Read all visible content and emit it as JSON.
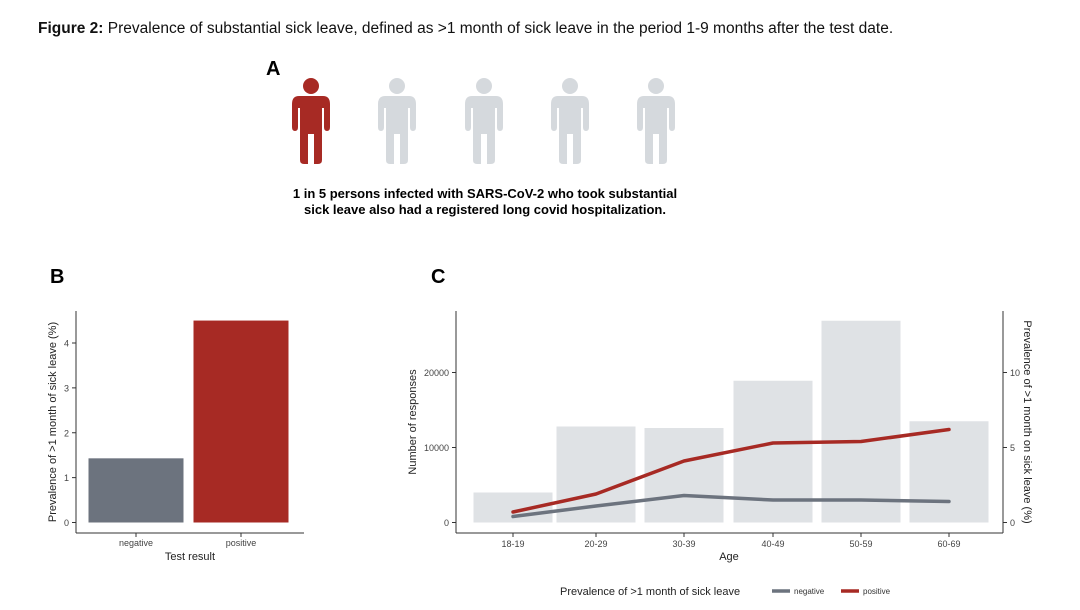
{
  "caption": {
    "label": "Figure 2:",
    "text": "Prevalence of substantial sick leave, defined as >1 month of sick leave in the period 1-9 months after the test date."
  },
  "panel_a": {
    "letter": "A",
    "icons": [
      "person-highlighted",
      "person",
      "person",
      "person",
      "person"
    ],
    "statement": "1 in 5 persons infected with SARS-CoV-2 who took substantial sick leave also had a registered long covid hospitalization."
  },
  "panel_b": {
    "letter": "B"
  },
  "panel_c": {
    "letter": "C"
  },
  "colors": {
    "positive": "#a72a24",
    "negative": "#6c737e",
    "responses": "#dfe2e5",
    "person_inactive": "#d5d9dd",
    "axis": "#333333"
  },
  "chart_data": [
    {
      "id": "B",
      "type": "bar",
      "categories": [
        "negative",
        "positive"
      ],
      "values": [
        1.43,
        4.5
      ],
      "xlabel": "Test result",
      "ylabel": "Prevalence of >1 month of sick leave (%)",
      "ylim": [
        0,
        4.65
      ],
      "yticks": [
        0,
        1,
        2,
        3,
        4
      ],
      "grid": false
    },
    {
      "id": "C",
      "type": "bar+line",
      "categories": [
        "18-19",
        "20-29",
        "30-39",
        "40-49",
        "50-59",
        "60-69"
      ],
      "bars": {
        "name": "Number of responses",
        "values": [
          4000,
          12800,
          12600,
          18900,
          26900,
          13500
        ]
      },
      "series": [
        {
          "name": "negative",
          "values": [
            0.4,
            1.1,
            1.8,
            1.5,
            1.5,
            1.4
          ]
        },
        {
          "name": "positive",
          "values": [
            0.7,
            1.9,
            4.1,
            5.3,
            5.4,
            6.2
          ]
        }
      ],
      "xlabel": "Age",
      "ylabel_left": "Number of responses",
      "ylabel_right": "Prevalence of >1 month on sick leave (%)",
      "ylim_left": [
        0,
        28000
      ],
      "yticks_left": [
        0,
        10000,
        20000
      ],
      "ylim_right": [
        0,
        14
      ],
      "yticks_right": [
        0,
        5,
        10
      ],
      "legend_title": "Prevalence of >1 month of sick leave",
      "legend_position": "bottom",
      "grid": false
    }
  ]
}
